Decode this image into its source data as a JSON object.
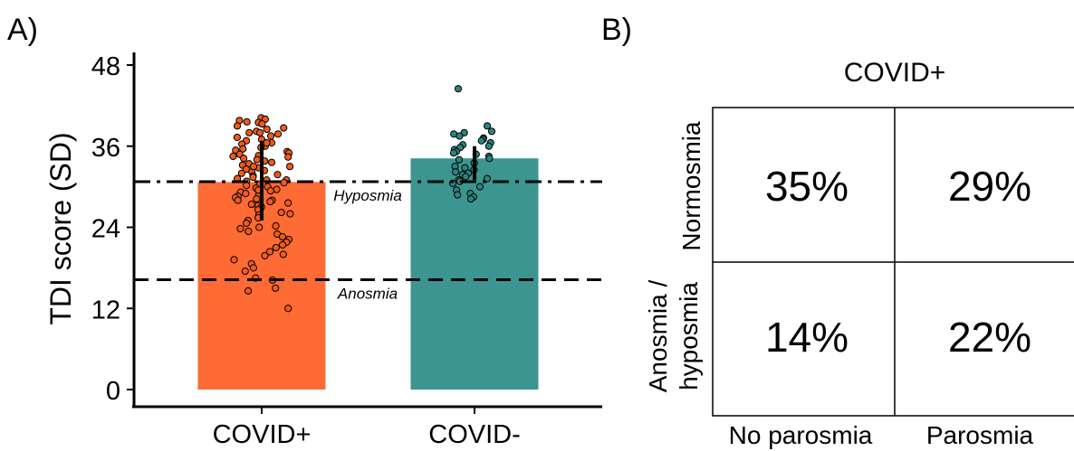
{
  "panel_a_label": "A)",
  "panel_b_label": "B)",
  "chart_data": [
    {
      "type": "bar",
      "ylabel": "TDI score (SD)",
      "ylim": [
        0,
        48
      ],
      "yticks": [
        0,
        12,
        24,
        36,
        48
      ],
      "categories": [
        "COVID+",
        "COVID-"
      ],
      "values": [
        30.7,
        34.2
      ],
      "error_bars": [
        [
          25.0,
          36.8
        ],
        [
          31.0,
          36.0
        ]
      ],
      "colors": [
        "#FF6B35",
        "#3D9591"
      ],
      "point_colors": [
        "#F05A1A",
        "#2A8580"
      ],
      "reference_lines": [
        {
          "label": "Hyposmia",
          "value": 30.75,
          "style": "dash-dot"
        },
        {
          "label": "Anosmia",
          "value": 16.25,
          "style": "dashed"
        }
      ],
      "points": [
        [
          40.2,
          40.0,
          39.8,
          39.6,
          39.5,
          39.3,
          39.0,
          38.7,
          38.5,
          38.2,
          38.0,
          37.8,
          37.5,
          37.3,
          37.0,
          36.8,
          36.5,
          36.3,
          36.0,
          35.8,
          35.6,
          35.4,
          35.2,
          35.0,
          34.8,
          34.6,
          34.4,
          34.2,
          34.0,
          33.8,
          33.6,
          33.4,
          33.2,
          33.0,
          32.8,
          32.6,
          32.4,
          32.2,
          32.0,
          31.8,
          31.6,
          31.4,
          31.2,
          31.0,
          30.8,
          30.6,
          30.4,
          30.2,
          30.0,
          29.8,
          29.6,
          29.4,
          29.2,
          29.0,
          28.8,
          28.6,
          28.4,
          28.2,
          28.0,
          27.8,
          27.6,
          27.4,
          27.2,
          27.0,
          26.6,
          26.2,
          25.8,
          25.4,
          25.0,
          24.6,
          24.2,
          23.8,
          23.4,
          23.0,
          22.6,
          22.2,
          21.8,
          21.4,
          21.0,
          20.4,
          19.8,
          19.2,
          18.6,
          18.0,
          17.5,
          16.5,
          16.2,
          15.0,
          14.6,
          12.0,
          34.5,
          33.0,
          31.0,
          29.5,
          28.0,
          26.0,
          24.0,
          20.0,
          36.5,
          38.0
        ],
        [
          44.5,
          39.0,
          38.2,
          38.0,
          37.8,
          37.5,
          37.2,
          37.0,
          36.8,
          36.5,
          36.2,
          36.0,
          35.8,
          35.5,
          35.2,
          35.0,
          34.8,
          34.5,
          34.2,
          34.0,
          33.5,
          33.0,
          32.8,
          32.5,
          32.2,
          32.0,
          31.8,
          31.5,
          31.2,
          31.0,
          30.8,
          30.5,
          30.0,
          29.5,
          29.0,
          28.8,
          28.5,
          28.2
        ]
      ]
    },
    {
      "type": "table",
      "title": "COVID+",
      "columns": [
        "No parosmia",
        "Parosmia"
      ],
      "rows": [
        "Normosmia",
        "Anosmia / hyposmia"
      ],
      "row_label_lines": [
        [
          "Normosmia"
        ],
        [
          "Anosmia /",
          "hyposmia"
        ]
      ],
      "cells": [
        [
          "35%",
          "29%"
        ],
        [
          "14%",
          "22%"
        ]
      ]
    }
  ]
}
